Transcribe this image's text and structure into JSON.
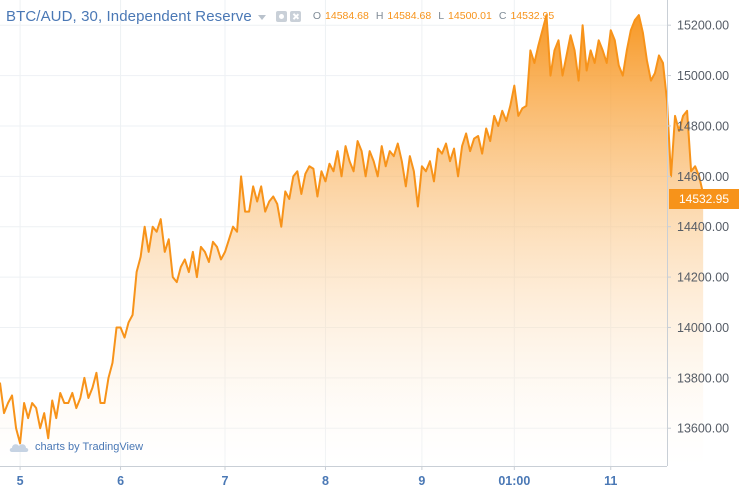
{
  "header": {
    "symbol": "BTC/AUD, 30, Independent Reserve",
    "ohlc": [
      {
        "key": "O",
        "value": "14584.68"
      },
      {
        "key": "H",
        "value": "14584.68"
      },
      {
        "key": "L",
        "value": "14500.01"
      },
      {
        "key": "C",
        "value": "14532.95"
      }
    ]
  },
  "last_price_label": "14532.95",
  "watermark": "charts by TradingView",
  "colors": {
    "line": "#f7931a",
    "area_top": "#f7931a",
    "area_bottom": "#ffffff",
    "grid": "#eef1f4",
    "axis_text_y": "#555c66",
    "axis_text_x": "#4a78b5",
    "symbol": "#4a78b5"
  },
  "icons": [
    "chevron-down-icon",
    "gear-icon",
    "close-icon",
    "tradingview-cloud-icon"
  ],
  "chart_data": {
    "type": "area",
    "title": "BTC/AUD, 30, Independent Reserve",
    "xlabel": "",
    "ylabel": "",
    "ylim": [
      13450,
      15300
    ],
    "xlim": [
      0,
      166
    ],
    "grid": true,
    "y_ticks": [
      13600,
      13800,
      14000,
      14200,
      14400,
      14600,
      14800,
      15000,
      15200
    ],
    "y_tick_labels": [
      "13600.00",
      "13800.00",
      "14000.00",
      "14200.00",
      "14400.00",
      "14600.00",
      "14800.00",
      "15000.00",
      "15200.00"
    ],
    "x_ticks": [
      {
        "at": 5,
        "label": "5"
      },
      {
        "at": 30,
        "label": "6"
      },
      {
        "at": 56,
        "label": "7"
      },
      {
        "at": 81,
        "label": "8"
      },
      {
        "at": 105,
        "label": "9"
      },
      {
        "at": 128,
        "label": "01:00"
      },
      {
        "at": 152,
        "label": "11"
      }
    ],
    "series": [
      {
        "values": [
          13780,
          13660,
          13700,
          13730,
          13600,
          13540,
          13700,
          13640,
          13700,
          13680,
          13600,
          13660,
          13560,
          13710,
          13640,
          13740,
          13700,
          13700,
          13740,
          13680,
          13720,
          13800,
          13720,
          13760,
          13820,
          13700,
          13700,
          13800,
          13860,
          14000,
          14000,
          13960,
          14020,
          14050,
          14220,
          14280,
          14400,
          14300,
          14400,
          14380,
          14430,
          14300,
          14350,
          14200,
          14180,
          14240,
          14270,
          14220,
          14300,
          14200,
          14320,
          14300,
          14260,
          14340,
          14320,
          14270,
          14300,
          14350,
          14400,
          14380,
          14600,
          14460,
          14460,
          14560,
          14500,
          14560,
          14460,
          14500,
          14520,
          14490,
          14400,
          14540,
          14510,
          14600,
          14620,
          14530,
          14610,
          14640,
          14630,
          14520,
          14620,
          14580,
          14650,
          14620,
          14700,
          14600,
          14720,
          14660,
          14620,
          14740,
          14700,
          14600,
          14700,
          14660,
          14600,
          14720,
          14640,
          14700,
          14680,
          14730,
          14660,
          14560,
          14680,
          14620,
          14480,
          14640,
          14620,
          14660,
          14580,
          14710,
          14690,
          14730,
          14660,
          14710,
          14600,
          14720,
          14770,
          14700,
          14750,
          14760,
          14690,
          14790,
          14740,
          14840,
          14800,
          14860,
          14820,
          14880,
          14960,
          14840,
          14870,
          14880,
          15100,
          15050,
          15120,
          15180,
          15240,
          15000,
          15100,
          15140,
          15000,
          15080,
          15160,
          15100,
          14980,
          15200,
          15020,
          15100,
          15050,
          15140,
          15100,
          15050,
          15180,
          15140,
          15040,
          15000,
          15100,
          15180,
          15220,
          15240,
          15170,
          15060,
          14980,
          15010,
          15080,
          15050,
          14900,
          14600,
          14840,
          14780,
          14840,
          14860,
          14620,
          14640,
          14600,
          14530
        ]
      }
    ]
  }
}
